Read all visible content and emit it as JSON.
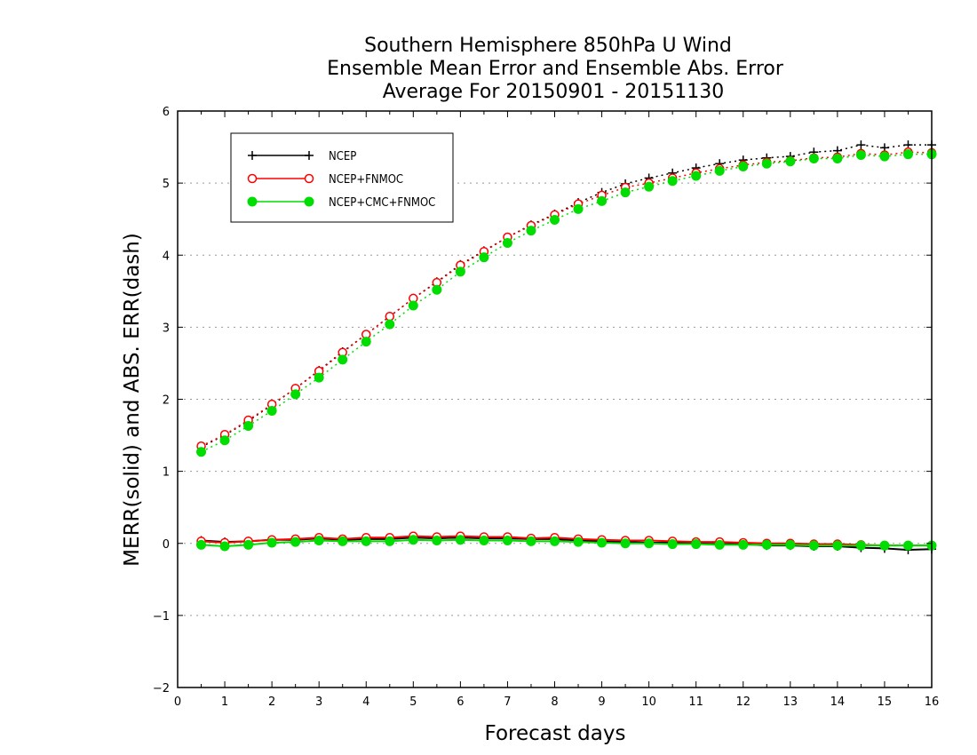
{
  "chart_data": {
    "type": "line",
    "title": [
      "Southern Hemisphere 850hPa U Wind",
      "Ensemble Mean Error and Ensemble Abs. Error",
      "Average For 20150901 - 20151130"
    ],
    "xlabel": "Forecast days",
    "ylabel": "MERR(solid) and ABS. ERR(dash)",
    "xlim": [
      0,
      16
    ],
    "ylim": [
      -2,
      6
    ],
    "xticks": [
      "0",
      "1",
      "2",
      "3",
      "4",
      "5",
      "6",
      "7",
      "8",
      "9",
      "10",
      "11",
      "12",
      "13",
      "14",
      "15",
      "16"
    ],
    "yticks": [
      "6",
      "5",
      "4",
      "3",
      "2",
      "1",
      "0",
      "−1",
      "−2"
    ],
    "grid": "horizontal dotted",
    "legend_position": "top-left",
    "x": [
      0.5,
      1,
      1.5,
      2,
      2.5,
      3,
      3.5,
      4,
      4.5,
      5,
      5.5,
      6,
      6.5,
      7,
      7.5,
      8,
      8.5,
      9,
      9.5,
      10,
      10.5,
      11,
      11.5,
      12,
      12.5,
      13,
      13.5,
      14,
      14.5,
      15,
      15.5,
      16
    ],
    "series": [
      {
        "name": "NCEP",
        "color": "#000000",
        "marker": "plus",
        "merr": [
          0.04,
          0.02,
          0.03,
          0.05,
          0.05,
          0.07,
          0.05,
          0.06,
          0.06,
          0.08,
          0.07,
          0.08,
          0.07,
          0.07,
          0.06,
          0.06,
          0.04,
          0.03,
          0.02,
          0.01,
          0.01,
          0.0,
          -0.01,
          -0.01,
          -0.03,
          -0.03,
          -0.04,
          -0.04,
          -0.06,
          -0.07,
          -0.09,
          -0.08
        ],
        "abs_err": [
          1.34,
          1.5,
          1.7,
          1.92,
          2.15,
          2.4,
          2.66,
          2.9,
          3.15,
          3.4,
          3.63,
          3.87,
          4.06,
          4.25,
          4.42,
          4.57,
          4.73,
          4.87,
          4.99,
          5.07,
          5.14,
          5.21,
          5.27,
          5.32,
          5.35,
          5.37,
          5.43,
          5.45,
          5.53,
          5.49,
          5.53,
          5.53
        ]
      },
      {
        "name": "NCEP+FNMOC",
        "color": "#ff0000",
        "marker": "open-circle",
        "merr": [
          0.03,
          0.01,
          0.03,
          0.05,
          0.06,
          0.08,
          0.06,
          0.08,
          0.08,
          0.1,
          0.09,
          0.1,
          0.09,
          0.09,
          0.07,
          0.08,
          0.06,
          0.05,
          0.04,
          0.04,
          0.03,
          0.02,
          0.02,
          0.01,
          0.0,
          0.0,
          -0.01,
          -0.01,
          -0.02,
          -0.03,
          -0.03,
          -0.03
        ],
        "abs_err": [
          1.35,
          1.51,
          1.71,
          1.93,
          2.15,
          2.39,
          2.65,
          2.9,
          3.15,
          3.4,
          3.62,
          3.86,
          4.05,
          4.25,
          4.41,
          4.56,
          4.71,
          4.83,
          4.94,
          5.0,
          5.07,
          5.14,
          5.2,
          5.25,
          5.29,
          5.31,
          5.35,
          5.36,
          5.41,
          5.39,
          5.43,
          5.42
        ]
      },
      {
        "name": "NCEP+CMC+FNMOC",
        "color": "#00dd00",
        "marker": "filled-circle",
        "merr": [
          -0.02,
          -0.04,
          -0.02,
          0.01,
          0.02,
          0.04,
          0.03,
          0.03,
          0.03,
          0.05,
          0.04,
          0.05,
          0.04,
          0.04,
          0.03,
          0.03,
          0.02,
          0.01,
          0.0,
          0.0,
          -0.01,
          -0.01,
          -0.02,
          -0.02,
          -0.02,
          -0.02,
          -0.03,
          -0.03,
          -0.03,
          -0.03,
          -0.03,
          -0.03
        ],
        "abs_err": [
          1.27,
          1.43,
          1.63,
          1.84,
          2.07,
          2.3,
          2.55,
          2.8,
          3.04,
          3.3,
          3.52,
          3.77,
          3.97,
          4.17,
          4.34,
          4.49,
          4.64,
          4.75,
          4.87,
          4.95,
          5.03,
          5.1,
          5.17,
          5.23,
          5.27,
          5.3,
          5.34,
          5.34,
          5.39,
          5.37,
          5.4,
          5.4
        ]
      }
    ]
  }
}
